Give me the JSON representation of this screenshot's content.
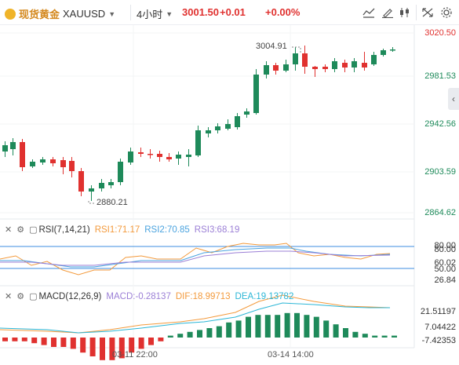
{
  "header": {
    "symbol_name": "现货黄金",
    "symbol_code": "XAUUSD",
    "timeframe": "4小时",
    "last_price": "3001.50",
    "change": "+0.01",
    "change_pct": "+0.00%",
    "icons": [
      "indicator-icon",
      "draw-icon",
      "candle-type-icon",
      "fullscreen-icon",
      "settings-icon"
    ]
  },
  "main_chart": {
    "price_axis": [
      "3020.50",
      "2981.53",
      "2942.56",
      "2903.59",
      "2864.62"
    ],
    "high_label": "3004.91",
    "low_label": "2880.21",
    "up_color": "#1e8a5a",
    "down_color": "#e0312f"
  },
  "rsi": {
    "title": "RSI(7,14,21)",
    "rsi1_label": "RSI1:71.17",
    "rsi2_label": "RSI2:70.85",
    "rsi3_label": "RSI3:68.19",
    "axis": [
      "80.00",
      "60.02",
      "50.00",
      "26.84"
    ],
    "rsi1_color": "#f39a3c",
    "rsi2_color": "#4aa3df",
    "rsi3_color": "#9b7fd6"
  },
  "macd": {
    "title": "MACD(12,26,9)",
    "macd_label": "MACD:-0.28137",
    "dif_label": "DIF:18.99713",
    "dea_label": "DEA:19.13782",
    "axis": [
      "21.51197",
      "7.04422",
      "-7.42353"
    ],
    "dif_color": "#f39a3c",
    "dea_color": "#2bb6d6"
  },
  "time_axis": [
    "03-11 22:00",
    "03-14 14:00"
  ]
}
